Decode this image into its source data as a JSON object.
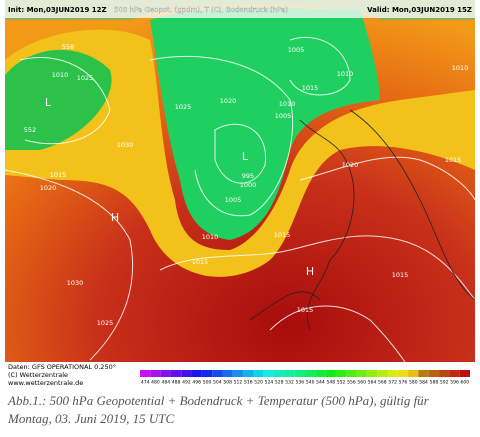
{
  "header": {
    "init": "Init: Mon,03JUN2019 12Z",
    "title": "500 hPa Geopot. (gpdm), T (C), Bodendruck (hPa)",
    "valid": "Valid: Mon,03JUN2019 15Z"
  },
  "footer": {
    "lines": [
      "Daten: GFS OPERATIONAL 0.250°",
      "(C) Wetterzentrale",
      "www.wetterzentrale.de"
    ],
    "colorbar": [
      "474",
      "480",
      "484",
      "488",
      "492",
      "496",
      "500",
      "504",
      "508",
      "512",
      "516",
      "520",
      "524",
      "528",
      "532",
      "536",
      "540",
      "544",
      "548",
      "552",
      "556",
      "560",
      "564",
      "568",
      "572",
      "576",
      "580",
      "584",
      "588",
      "592",
      "596",
      "600"
    ]
  },
  "map_labels": [
    "1010",
    "1025",
    "L",
    "1030",
    "1020",
    "1015",
    "H",
    "1030",
    "1025",
    "1025",
    "1020",
    "L",
    "995",
    "1000",
    "1005",
    "1010",
    "1015",
    "1015",
    "1005",
    "1010",
    "1015",
    "1010",
    "1005",
    "1020",
    "1015",
    "1015",
    "H",
    "1015",
    "1010",
    "558",
    "552"
  ],
  "caption": [
    "Abb.1.: 500 hPa Geopotential + Bodendruck + Temperatur (500 hPa), gültig für",
    "Montag, 03. Juni 2019, 15 UTC"
  ]
}
